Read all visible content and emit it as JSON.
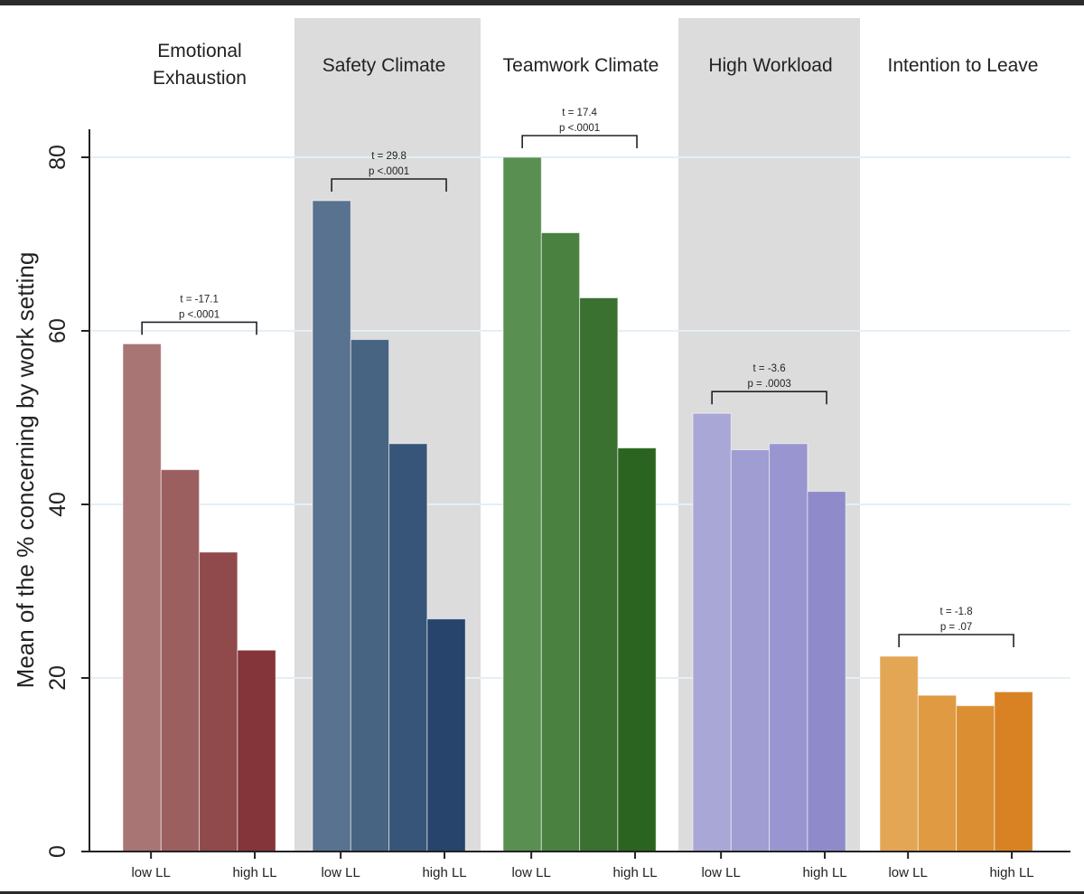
{
  "chart_data": {
    "type": "bar",
    "ylabel": "Mean of the % concerning by work setting",
    "ylim": [
      0,
      84
    ],
    "yticks": [
      0,
      20,
      40,
      60,
      80
    ],
    "grid": true,
    "groups": [
      {
        "title_lines": [
          "Emotional",
          "Exhaustion"
        ],
        "shaded": false,
        "values": [
          58.5,
          44.0,
          34.5,
          23.2
        ],
        "colors": [
          "#a87474",
          "#9c5f5f",
          "#904a4c",
          "#833539"
        ],
        "tick_low": "low LL",
        "tick_high": "high LL",
        "t_label": "t = -17.1",
        "p_label": "p <.0001"
      },
      {
        "title_lines": [
          "Safety Climate"
        ],
        "shaded": true,
        "values": [
          75.0,
          59.0,
          47.0,
          26.8
        ],
        "colors": [
          "#587290",
          "#476482",
          "#375578",
          "#27446c"
        ],
        "tick_low": "low LL",
        "tick_high": "high LL",
        "t_label": "t = 29.8",
        "p_label": "p <.0001"
      },
      {
        "title_lines": [
          "Teamwork Climate"
        ],
        "shaded": false,
        "values": [
          80.0,
          71.3,
          63.8,
          46.5
        ],
        "colors": [
          "#5a8f52",
          "#4a8040",
          "#3a7030",
          "#2b6420"
        ],
        "tick_low": "low LL",
        "tick_high": "high LL",
        "t_label": "t = 17.4",
        "p_label": "p <.0001"
      },
      {
        "title_lines": [
          "High Workload"
        ],
        "shaded": true,
        "values": [
          50.5,
          46.3,
          47.0,
          41.5
        ],
        "colors": [
          "#a9a7d6",
          "#a09dd3",
          "#9895d0",
          "#8f8bcb"
        ],
        "tick_low": "low LL",
        "tick_high": "high LL",
        "t_label": "t = -3.6",
        "p_label": "p = .0003"
      },
      {
        "title_lines": [
          "Intention to Leave"
        ],
        "shaded": false,
        "values": [
          22.5,
          18.0,
          16.8,
          18.4
        ],
        "colors": [
          "#e2a654",
          "#df9a42",
          "#dc8e32",
          "#d98224"
        ],
        "tick_low": "low LL",
        "tick_high": "high LL",
        "t_label": "t = -1.8",
        "p_label": "p = .07"
      }
    ]
  }
}
